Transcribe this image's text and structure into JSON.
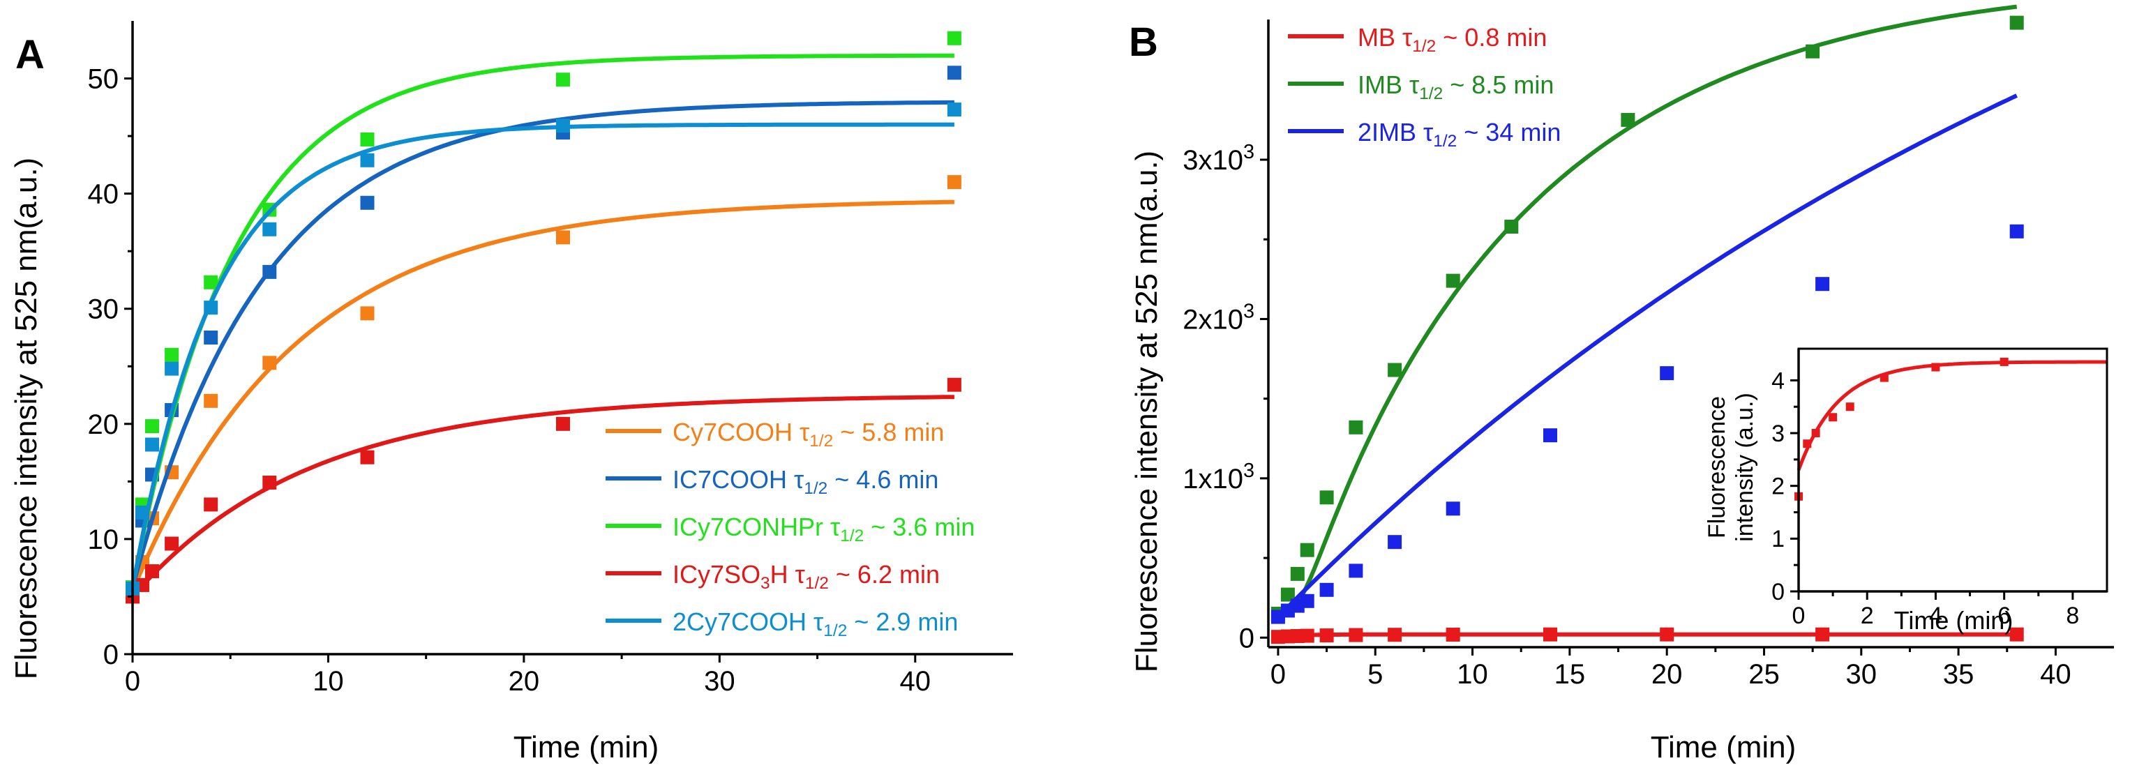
{
  "chart_data": [
    {
      "panel_label": "A",
      "type": "scatter",
      "xlabel": "Time (min)",
      "ylabel": "Fluorescence intensity at 525 nm(a.u.)",
      "xlim": [
        0,
        45
      ],
      "ylim": [
        0,
        55
      ],
      "xticks": [
        0,
        10,
        20,
        30,
        40
      ],
      "yticks": [
        0,
        10,
        20,
        30,
        40,
        50
      ],
      "x_tick_labels": [
        "0",
        "10",
        "20",
        "30",
        "40"
      ],
      "y_tick_labels": [
        "0",
        "10",
        "20",
        "30",
        "40",
        "50"
      ],
      "legend_position": "lower-right",
      "series": [
        {
          "name": "Cy7COOH",
          "tau_label": "τ1/2 ~ 5.8 min",
          "legend_text": "Cy7COOH τ1/2 ~ 5.8 min",
          "color": "#f57f17",
          "x": [
            0,
            0.5,
            1,
            2,
            4,
            7,
            12,
            22,
            42
          ],
          "y": [
            5.5,
            8,
            11.8,
            15.8,
            22,
            25.3,
            29.6,
            36.2,
            41
          ],
          "fit": {
            "y0": 5.5,
            "ymax": 39.5,
            "t_half": 5.8,
            "x_max": 42
          }
        },
        {
          "name": "IC7COOH",
          "tau_label": "τ1/2 ~ 4.6 min",
          "legend_text": "IC7COOH τ1/2 ~ 4.6 min",
          "color": "#1565c0",
          "x": [
            0,
            0.5,
            1,
            2,
            4,
            7,
            12,
            22,
            42
          ],
          "y": [
            5.8,
            11.6,
            15.6,
            21.2,
            27.5,
            33.2,
            39.2,
            45.3,
            50.5
          ],
          "fit": {
            "y0": 5.8,
            "ymax": 48,
            "t_half": 4.6,
            "x_max": 42
          }
        },
        {
          "name": "ICy7CONHPr",
          "tau_label": "τ1/2 ~ 3.6 min",
          "legend_text": "ICy7CONHPr τ1/2 ~ 3.6 min",
          "color": "#21e21a",
          "x": [
            0,
            0.5,
            1,
            2,
            4,
            7,
            12,
            22,
            42
          ],
          "y": [
            5.8,
            13,
            19.8,
            26,
            32.3,
            38.6,
            44.7,
            49.9,
            53.5
          ],
          "fit": {
            "y0": 5.8,
            "ymax": 52,
            "t_half": 3.6,
            "x_max": 42
          }
        },
        {
          "name": "ICy7SO3H",
          "tau_label": "τ1/2 ~ 6.2 min",
          "legend_text": "ICy7SO3H τ1/2 ~ 6.2 min",
          "color": "#e01818",
          "x": [
            0,
            0.5,
            1,
            2,
            4,
            7,
            12,
            22,
            42
          ],
          "y": [
            5,
            6,
            7.2,
            9.6,
            13,
            14.9,
            17.1,
            20,
            23.4
          ],
          "fit": {
            "y0": 5,
            "ymax": 22.5,
            "t_half": 6.2,
            "x_max": 42
          }
        },
        {
          "name": "2Cy7COOH",
          "tau_label": "τ1/2 ~ 2.9 min",
          "legend_text": "2Cy7COOH τ1/2 ~ 2.9 min",
          "color": "#0c8ed0",
          "x": [
            0,
            0.5,
            1,
            2,
            4,
            7,
            12,
            22,
            42
          ],
          "y": [
            5.7,
            12.3,
            18.2,
            24.8,
            30.1,
            36.9,
            42.9,
            45.9,
            47.3
          ],
          "fit": {
            "y0": 5.7,
            "ymax": 46,
            "t_half": 2.9,
            "x_max": 42
          }
        }
      ]
    },
    {
      "panel_label": "B",
      "type": "scatter",
      "xlabel": "Time (min)",
      "ylabel": "Fluorescence intensity at 525 nm(a.u.)",
      "xlim": [
        -0.5,
        43
      ],
      "ylim": [
        -60,
        3880
      ],
      "xticks": [
        0,
        5,
        10,
        15,
        20,
        25,
        30,
        35,
        40
      ],
      "yticks": [
        0,
        1000,
        2000,
        3000
      ],
      "x_tick_labels": [
        "0",
        "5",
        "10",
        "15",
        "20",
        "25",
        "30",
        "35",
        "40"
      ],
      "y_tick_labels": [
        "0",
        "1x103",
        "2x103",
        "3x103"
      ],
      "legend_position": "top-left",
      "series": [
        {
          "name": "MB",
          "tau_label": "τ1/2 ~ 0.8 min",
          "legend_text": "MB τ1/2 ~ 0.8 min",
          "color": "#e8191a",
          "x": [
            0,
            0.5,
            1,
            1.5,
            2.5,
            4,
            6,
            9,
            14,
            20,
            28,
            38
          ],
          "y": [
            5,
            8,
            10,
            12,
            14,
            16,
            18,
            19,
            20,
            20,
            20,
            20
          ],
          "fit": {
            "y0": 5,
            "ymax": 20,
            "t_half": 0.8,
            "x_max": 38
          }
        },
        {
          "name": "IMB",
          "tau_label": "τ1/2 ~ 8.5 min",
          "legend_text": "IMB τ1/2 ~ 8.5 min",
          "color": "#1f8a1f",
          "x": [
            0,
            0.5,
            1,
            1.5,
            2.5,
            4,
            6,
            9,
            12,
            18,
            27.5,
            38
          ],
          "y": [
            150,
            270,
            400,
            550,
            880,
            1320,
            1680,
            2240,
            2580,
            3250,
            3680,
            3860
          ],
          "fit": {
            "y0": 140,
            "ymax": 4150,
            "t_half": 8.5,
            "x_max": 38,
            "sigmoid_t0": 1.8
          }
        },
        {
          "name": "2IMB",
          "tau_label": "τ1/2 ~ 34 min",
          "legend_text": "2IMB τ1/2 ~ 34 min",
          "color": "#1a24e6",
          "x": [
            0,
            0.5,
            1,
            1.5,
            2.5,
            4,
            6,
            9,
            14,
            20,
            28,
            38
          ],
          "y": [
            130,
            170,
            200,
            230,
            300,
            420,
            600,
            810,
            1270,
            1660,
            2220,
            2550
          ],
          "fit": {
            "y0": 130,
            "ymax": 6200,
            "t_half": 34,
            "x_max": 38
          }
        }
      ],
      "inset": {
        "xlabel": "Time (min)",
        "ylabel_line1": "Fluorescence",
        "ylabel_line2": "intensity (a.u.)",
        "xlim": [
          0,
          9
        ],
        "ylim": [
          0,
          4.6
        ],
        "xticks": [
          0,
          2,
          4,
          6,
          8
        ],
        "yticks": [
          0,
          0.5,
          1,
          1.5,
          2,
          2.5,
          3,
          3.5,
          4
        ],
        "x_tick_labels": [
          "0",
          "2",
          "4",
          "6",
          "8"
        ],
        "y_tick_labels": [
          "0",
          "1",
          "2",
          "3",
          "4"
        ],
        "labeled_yticks": [
          0,
          1,
          2,
          3,
          4
        ],
        "series": {
          "name": "MB",
          "color": "#e8191a",
          "x": [
            0,
            0.25,
            0.5,
            1,
            1.5,
            2.5,
            4,
            6
          ],
          "y": [
            1.8,
            2.8,
            3.0,
            3.3,
            3.5,
            4.05,
            4.25,
            4.35
          ],
          "fit": {
            "y0": 2.3,
            "ymax": 4.35,
            "t_half": 0.8,
            "x_max": 9
          }
        }
      }
    }
  ]
}
